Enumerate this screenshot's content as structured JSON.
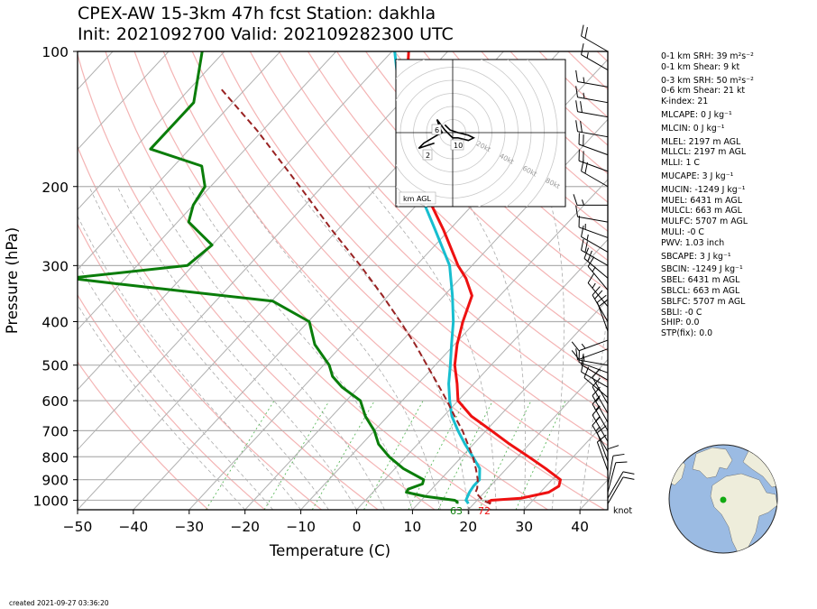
{
  "title_line1": "CPEX-AW 15-3km  47h fcst  Station: dakhla",
  "title_line2": "Init: 2021092700  Valid: 202109282300 UTC",
  "created": "created 2021-09-27 03:36:20",
  "barb_unit_label": "knot",
  "stats": [
    "0-1 km SRH: 39 m²s⁻²",
    "0-1 km Shear: 9 kt",
    "0-3 km SRH: 50 m²s⁻²",
    "0-6 km Shear: 21 kt",
    "K-index: 21",
    "MLCAPE: 0 J kg⁻¹",
    "MLCIN: 0 J kg⁻¹",
    "MLEL: 2197 m AGL",
    "MLLCL: 2197 m AGL",
    "MLLI: 1 C",
    "MUCAPE: 3 J kg⁻¹",
    "MUCIN: -1249 J kg⁻¹",
    "MUEL: 6431 m AGL",
    "MULCL: 663 m AGL",
    "MULFC: 5707 m AGL",
    "MULI: -0 C",
    "PWV: 1.03 inch",
    "SBCAPE: 3 J kg⁻¹",
    "SBCIN: -1249 J kg⁻¹",
    "SBEL: 6431 m AGL",
    "SBLCL: 663 m AGL",
    "SBLFC: 5707 m AGL",
    "SBLI: -0 C",
    "SHIP: 0.0",
    "STP(fix): 0.0"
  ],
  "stat_gaps": [
    2,
    5,
    6,
    7,
    10,
    11,
    17,
    18
  ],
  "chart_data": {
    "type": "line",
    "subtype": "skew-T log-p",
    "xlabel": "Temperature (C)",
    "ylabel": "Pressure (hPa)",
    "xlim": [
      -50,
      45
    ],
    "ylim": [
      1050,
      100
    ],
    "y_scale": "log",
    "x_ticks": [
      -50,
      -40,
      -30,
      -20,
      -10,
      0,
      10,
      20,
      30,
      40
    ],
    "y_ticks": [
      100,
      200,
      300,
      400,
      500,
      600,
      700,
      800,
      900,
      1000
    ],
    "surface_dewpoint_label": "63",
    "surface_temperature_label": "72",
    "series": [
      {
        "color": "#ee1111",
        "values": [
          [
            1018,
            23.0
          ],
          [
            1008,
            22.3
          ],
          [
            1000,
            22.5
          ],
          [
            990,
            27.5
          ],
          [
            960,
            31.5
          ],
          [
            930,
            32.3
          ],
          [
            900,
            31.5
          ],
          [
            850,
            27.0
          ],
          [
            800,
            22.0
          ],
          [
            750,
            16.5
          ],
          [
            700,
            11.0
          ],
          [
            650,
            5.0
          ],
          [
            600,
            0.0
          ],
          [
            550,
            -3.0
          ],
          [
            500,
            -6.5
          ],
          [
            450,
            -9.5
          ],
          [
            400,
            -12.3
          ],
          [
            350,
            -15.0
          ],
          [
            320,
            -19.0
          ],
          [
            300,
            -22.5
          ],
          [
            250,
            -31.0
          ],
          [
            200,
            -42.0
          ],
          [
            160,
            -50.0
          ],
          [
            130,
            -59.0
          ],
          [
            100,
            -67.0
          ]
        ]
      },
      {
        "color": "#17becf",
        "values": [
          [
            1018,
            19.0
          ],
          [
            1008,
            18.5
          ],
          [
            1000,
            18.0
          ],
          [
            960,
            17.3
          ],
          [
            930,
            17.0
          ],
          [
            900,
            17.0
          ],
          [
            850,
            15.2
          ],
          [
            800,
            12.0
          ],
          [
            750,
            8.5
          ],
          [
            700,
            5.0
          ],
          [
            650,
            1.5
          ],
          [
            600,
            -1.5
          ],
          [
            550,
            -4.5
          ],
          [
            500,
            -7.3
          ],
          [
            450,
            -10.5
          ],
          [
            400,
            -14.0
          ],
          [
            350,
            -18.5
          ],
          [
            300,
            -24.0
          ],
          [
            250,
            -32.5
          ],
          [
            200,
            -43.0
          ],
          [
            160,
            -51.0
          ],
          [
            130,
            -60.0
          ],
          [
            100,
            -69.5
          ]
        ]
      },
      {
        "color": "#0a7d0a",
        "values": [
          [
            1018,
            17.0
          ],
          [
            1008,
            16.7
          ],
          [
            1000,
            16.0
          ],
          [
            980,
            10.0
          ],
          [
            960,
            6.0
          ],
          [
            945,
            5.8
          ],
          [
            920,
            7.5
          ],
          [
            900,
            7.0
          ],
          [
            850,
            1.5
          ],
          [
            800,
            -3.0
          ],
          [
            750,
            -7.0
          ],
          [
            700,
            -10.0
          ],
          [
            650,
            -14.0
          ],
          [
            600,
            -17.5
          ],
          [
            560,
            -23.0
          ],
          [
            530,
            -26.5
          ],
          [
            500,
            -29.0
          ],
          [
            450,
            -35.0
          ],
          [
            400,
            -39.8
          ],
          [
            360,
            -49.8
          ],
          [
            330,
            -80.0
          ],
          [
            320,
            -90.0
          ],
          [
            300,
            -71.0
          ],
          [
            270,
            -70.0
          ],
          [
            240,
            -78.0
          ],
          [
            220,
            -80.0
          ],
          [
            200,
            -81.0
          ],
          [
            180,
            -85.0
          ],
          [
            165,
            -97.0
          ],
          [
            130,
            -97.0
          ],
          [
            100,
            -104.0
          ]
        ]
      },
      {
        "color": "#992222",
        "style": "dashed",
        "values": [
          [
            1018,
            23.0
          ],
          [
            1000,
            21.0
          ],
          [
            960,
            18.4
          ],
          [
            940,
            18.0
          ],
          [
            900,
            16.7
          ],
          [
            850,
            14.5
          ],
          [
            800,
            12.0
          ],
          [
            750,
            9.0
          ],
          [
            700,
            5.8
          ],
          [
            650,
            2.0
          ],
          [
            600,
            -2.0
          ],
          [
            550,
            -6.5
          ],
          [
            500,
            -11.5
          ],
          [
            450,
            -17.0
          ],
          [
            400,
            -23.5
          ],
          [
            350,
            -31.0
          ],
          [
            300,
            -40.0
          ],
          [
            250,
            -51.0
          ],
          [
            200,
            -64.0
          ],
          [
            150,
            -81.0
          ],
          [
            120,
            -95.0
          ]
        ]
      }
    ],
    "wind_barbs_kt": [
      [
        1018,
        8,
        30
      ],
      [
        990,
        8,
        30
      ],
      [
        960,
        10,
        15
      ],
      [
        930,
        10,
        10
      ],
      [
        900,
        10,
        360
      ],
      [
        860,
        10,
        340
      ],
      [
        820,
        12,
        340
      ],
      [
        780,
        14,
        330
      ],
      [
        740,
        14,
        330
      ],
      [
        700,
        14,
        330
      ],
      [
        670,
        14,
        330
      ],
      [
        640,
        12,
        330
      ],
      [
        610,
        10,
        330
      ],
      [
        590,
        10,
        310
      ],
      [
        560,
        8,
        300
      ],
      [
        540,
        10,
        300
      ],
      [
        520,
        10,
        290
      ],
      [
        500,
        15,
        280
      ],
      [
        460,
        10,
        250
      ],
      [
        440,
        15,
        250
      ],
      [
        420,
        20,
        340
      ],
      [
        400,
        20,
        330
      ],
      [
        370,
        15,
        320
      ],
      [
        340,
        15,
        320
      ],
      [
        320,
        20,
        310
      ],
      [
        300,
        20,
        300
      ],
      [
        280,
        15,
        300
      ],
      [
        260,
        15,
        290
      ],
      [
        240,
        10,
        280
      ],
      [
        220,
        15,
        270
      ],
      [
        200,
        20,
        300
      ],
      [
        185,
        20,
        290
      ],
      [
        170,
        20,
        290
      ],
      [
        155,
        20,
        280
      ],
      [
        140,
        20,
        280
      ],
      [
        130,
        15,
        280
      ],
      [
        120,
        15,
        280
      ],
      [
        110,
        15,
        300
      ],
      [
        100,
        20,
        300
      ]
    ],
    "hodograph": {
      "ring_labels": [
        "20kt",
        "40kt",
        "60kt",
        "80kt"
      ],
      "height_labels": [
        "2",
        "6",
        "10"
      ],
      "corner_label": "km AGL",
      "trace_kt": [
        [
          -7,
          -4
        ],
        [
          -10,
          -5
        ],
        [
          -13,
          -6
        ],
        [
          -11,
          -4
        ],
        [
          -6,
          -1
        ],
        [
          -4,
          0
        ],
        [
          -5,
          2
        ],
        [
          -6,
          5
        ],
        [
          -3,
          1
        ],
        [
          -1,
          -1
        ],
        [
          0,
          -2
        ],
        [
          2,
          -2
        ],
        [
          6,
          -3
        ],
        [
          8,
          -2
        ],
        [
          6,
          -1
        ],
        [
          2,
          0
        ],
        [
          -1,
          1
        ],
        [
          -3,
          3
        ]
      ]
    },
    "globe_marker": {
      "lat": 23.7,
      "lon": -15.9,
      "color": "#11aa11"
    }
  }
}
